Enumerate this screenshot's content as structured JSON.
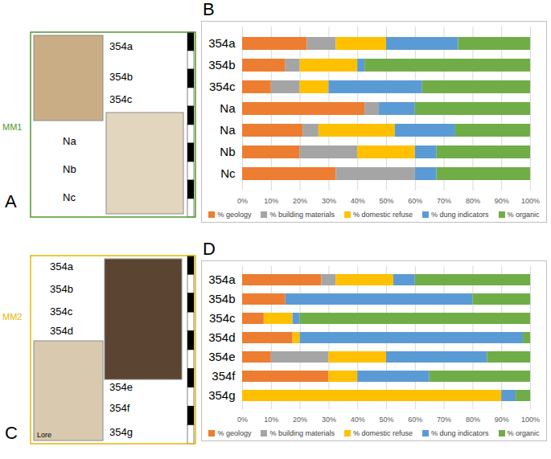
{
  "chart_data": [
    {
      "type": "bar",
      "orientation": "horizontal",
      "stacked": true,
      "grid": true,
      "legend": "bottom",
      "categories": [
        "354a",
        "354b",
        "354c",
        "Na",
        "Na",
        "Nb",
        "Nc"
      ],
      "series": [
        {
          "name": "% geology",
          "color": "#ED7D31",
          "values": [
            22.5,
            15,
            10,
            42.5,
            21,
            20,
            32.5
          ]
        },
        {
          "name": "% building materials",
          "color": "#A5A5A5",
          "values": [
            10,
            5,
            10,
            5,
            5.5,
            20,
            27.5
          ]
        },
        {
          "name": "% domestic refuse",
          "color": "#FFC000",
          "values": [
            17.5,
            20,
            10,
            0,
            26.5,
            20,
            0
          ]
        },
        {
          "name": "% dung indicators",
          "color": "#5B9BD5",
          "values": [
            25,
            2.5,
            32.5,
            12.5,
            21,
            7.5,
            7.5
          ]
        },
        {
          "name": "% organic",
          "color": "#70AD47",
          "values": [
            25,
            57.5,
            37.5,
            40,
            26,
            32.5,
            32.5
          ]
        }
      ],
      "xlim": [
        0,
        100
      ],
      "xticks": [
        {
          "value": 0,
          "label": "0%"
        },
        {
          "value": 10,
          "label": "10%"
        },
        {
          "value": 20,
          "label": "20%"
        },
        {
          "value": 30,
          "label": "30%"
        },
        {
          "value": 40,
          "label": "40%"
        },
        {
          "value": 50,
          "label": "50%"
        },
        {
          "value": 60,
          "label": "60%"
        },
        {
          "value": 70,
          "label": "70%"
        },
        {
          "value": 80,
          "label": "80%"
        },
        {
          "value": 90,
          "label": "90%"
        },
        {
          "value": 100,
          "label": "100%"
        }
      ]
    },
    {
      "type": "bar",
      "orientation": "horizontal",
      "stacked": true,
      "grid": true,
      "legend": "bottom",
      "categories": [
        "354a",
        "354b",
        "354c",
        "354d",
        "354e",
        "354f",
        "354g"
      ],
      "series": [
        {
          "name": "% geology",
          "color": "#ED7D31",
          "values": [
            27.5,
            15,
            7.5,
            17.5,
            10,
            30,
            0
          ]
        },
        {
          "name": "% building materials",
          "color": "#A5A5A5",
          "values": [
            5,
            0,
            0,
            0,
            20,
            0,
            0
          ]
        },
        {
          "name": "% domestic refuse",
          "color": "#FFC000",
          "values": [
            20,
            0,
            10,
            2.5,
            20,
            10,
            90
          ]
        },
        {
          "name": "% dung indicators",
          "color": "#5B9BD5",
          "values": [
            7.5,
            65,
            2.5,
            77.5,
            35,
            25,
            5
          ]
        },
        {
          "name": "% organic",
          "color": "#70AD47",
          "values": [
            40,
            20,
            80,
            2.5,
            15,
            35,
            5
          ]
        }
      ],
      "xlim": [
        0,
        100
      ],
      "xticks": [
        {
          "value": 0,
          "label": "0%"
        },
        {
          "value": 10,
          "label": "10%"
        },
        {
          "value": 20,
          "label": "20%"
        },
        {
          "value": 30,
          "label": "30%"
        },
        {
          "value": 40,
          "label": "40%"
        },
        {
          "value": 50,
          "label": "50%"
        },
        {
          "value": 60,
          "label": "60%"
        },
        {
          "value": 70,
          "label": "70%"
        },
        {
          "value": 80,
          "label": "80%"
        },
        {
          "value": 90,
          "label": "90%"
        },
        {
          "value": 100,
          "label": "100%"
        }
      ]
    }
  ],
  "chart_letters": [
    "B",
    "D"
  ],
  "thin_sections": [
    {
      "letter": "A",
      "sample": "MM1",
      "layers": [
        "354a",
        "354b",
        "354c",
        "Na",
        "Nb",
        "Nc"
      ]
    },
    {
      "letter": "C",
      "sample": "MM2",
      "layers": [
        "354a",
        "354b",
        "354c",
        "354d",
        "354e",
        "354f",
        "354g"
      ],
      "corner_label": "Lore"
    }
  ]
}
